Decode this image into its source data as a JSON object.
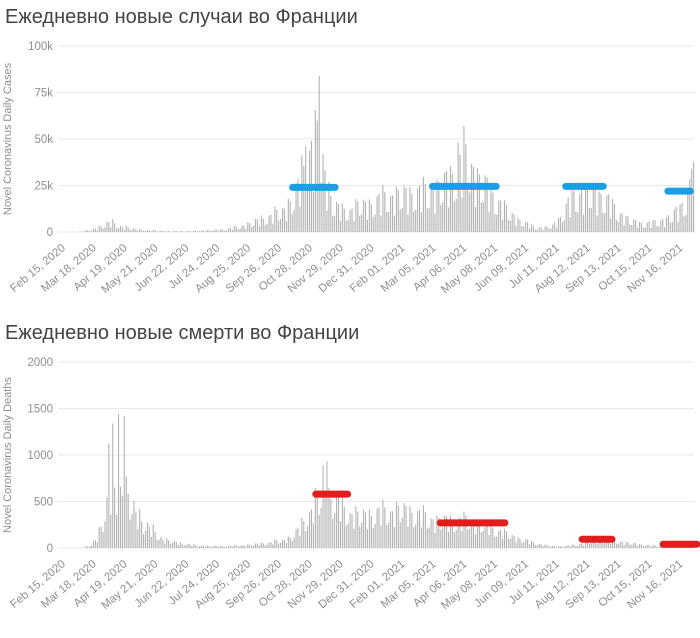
{
  "page": {
    "background": "#ffffff"
  },
  "chart_data": [
    {
      "type": "bar",
      "title": "Ежедневно новые случаи во Франции",
      "ylabel": "Novel Coronavirus Daily Cases",
      "xlabel": "",
      "x_start_date": "Feb 15, 2020",
      "x_tick_interval_days": 32,
      "total_days": 655,
      "sample_step_days": 2,
      "x_tick_labels": [
        "Feb 15, 2020",
        "Mar 18, 2020",
        "Apr 19, 2020",
        "May 21, 2020",
        "Jun 22, 2020",
        "Jul 24, 2020",
        "Aug 25, 2020",
        "Sep 26, 2020",
        "Oct 28, 2020",
        "Nov 29, 2020",
        "Dec 31, 2020",
        "Feb 01, 2021",
        "Mar 05, 2021",
        "Apr 06, 2021",
        "May 08, 2021",
        "Jun 09, 2021",
        "Jul 11, 2021",
        "Aug 12, 2021",
        "Sep 13, 2021",
        "Oct 15, 2021",
        "Nov 16, 2021"
      ],
      "ylim": [
        0,
        100000
      ],
      "y_tick_values": [
        0,
        25000,
        50000,
        75000,
        100000
      ],
      "y_tick_labels": [
        "0",
        "25k",
        "50k",
        "75k",
        "100k"
      ],
      "grid_on": true,
      "legend": "none",
      "bar_color": "#b2b2b2",
      "grid_color": "#e9e9e9",
      "envelope": [
        [
          0,
          5
        ],
        [
          15,
          60
        ],
        [
          29,
          900
        ],
        [
          40,
          3200
        ],
        [
          50,
          5200
        ],
        [
          60,
          3200
        ],
        [
          75,
          1500
        ],
        [
          90,
          800
        ],
        [
          107,
          500
        ],
        [
          122,
          450
        ],
        [
          137,
          600
        ],
        [
          152,
          900
        ],
        [
          168,
          1400
        ],
        [
          183,
          2800
        ],
        [
          199,
          5500
        ],
        [
          214,
          8500
        ],
        [
          229,
          12000
        ],
        [
          241,
          20000
        ],
        [
          249,
          33000
        ],
        [
          257,
          45000
        ],
        [
          263,
          50000
        ],
        [
          268,
          42000
        ],
        [
          274,
          27000
        ],
        [
          281,
          15000
        ],
        [
          290,
          11500
        ],
        [
          298,
          12000
        ],
        [
          306,
          14500
        ],
        [
          321,
          15500
        ],
        [
          329,
          18000
        ],
        [
          336,
          19500
        ],
        [
          352,
          20500
        ],
        [
          366,
          21500
        ],
        [
          380,
          22500
        ],
        [
          395,
          26000
        ],
        [
          409,
          34000
        ],
        [
          416,
          41000
        ],
        [
          423,
          36000
        ],
        [
          434,
          28000
        ],
        [
          448,
          19000
        ],
        [
          462,
          11000
        ],
        [
          476,
          5500
        ],
        [
          490,
          2600
        ],
        [
          500,
          2300
        ],
        [
          508,
          3500
        ],
        [
          516,
          8000
        ],
        [
          524,
          15000
        ],
        [
          531,
          20000
        ],
        [
          540,
          21500
        ],
        [
          550,
          21500
        ],
        [
          561,
          19500
        ],
        [
          573,
          12000
        ],
        [
          583,
          8000
        ],
        [
          594,
          5200
        ],
        [
          605,
          4600
        ],
        [
          616,
          5200
        ],
        [
          627,
          7500
        ],
        [
          637,
          11000
        ],
        [
          644,
          16000
        ],
        [
          650,
          24000
        ],
        [
          654,
          30000
        ]
      ],
      "spikes": [
        [
          252,
          46000
        ],
        [
          258,
          49000
        ],
        [
          264,
          60000
        ],
        [
          266,
          84000
        ],
        [
          410,
          48000
        ],
        [
          416,
          57000
        ],
        [
          652,
          34000
        ]
      ],
      "weekly_pattern": [
        0.5,
        0.4,
        0.55,
        1.3,
        1.25,
        1.2,
        1.1
      ],
      "highlight_color": "#1c9ee3",
      "highlight_segments": [
        {
          "start_day": 239,
          "end_day": 283,
          "value": 24000
        },
        {
          "start_day": 384,
          "end_day": 450,
          "value": 24500
        },
        {
          "start_day": 522,
          "end_day": 561,
          "value": 24500
        },
        {
          "start_day": 628,
          "end_day": 651,
          "value": 22000
        }
      ]
    },
    {
      "type": "bar",
      "title": "Ежедневно новые смерти во Франции",
      "ylabel": "Novel Coronavirus Daily Deaths",
      "xlabel": "",
      "x_start_date": "Feb 15, 2020",
      "x_tick_interval_days": 32,
      "total_days": 655,
      "sample_step_days": 2,
      "x_tick_labels": [
        "Feb 15, 2020",
        "Mar 18, 2020",
        "Apr 19, 2020",
        "May 21, 2020",
        "Jun 22, 2020",
        "Jul 24, 2020",
        "Aug 25, 2020",
        "Sep 26, 2020",
        "Oct 28, 2020",
        "Nov 29, 2020",
        "Dec 31, 2020",
        "Feb 01, 2021",
        "Mar 05, 2021",
        "Apr 06, 2021",
        "May 08, 2021",
        "Jun 09, 2021",
        "Jul 11, 2021",
        "Aug 12, 2021",
        "Sep 13, 2021",
        "Oct 15, 2021",
        "Nov 16, 2021"
      ],
      "ylim": [
        0,
        2000
      ],
      "y_tick_values": [
        0,
        500,
        1000,
        1500,
        2000
      ],
      "y_tick_labels": [
        "0",
        "500",
        "1000",
        "1500",
        "2000"
      ],
      "grid_on": true,
      "legend": "none",
      "bar_color": "#b2b2b2",
      "grid_color": "#e9e9e9",
      "envelope": [
        [
          0,
          0
        ],
        [
          20,
          1
        ],
        [
          29,
          25
        ],
        [
          36,
          120
        ],
        [
          43,
          350
        ],
        [
          50,
          600
        ],
        [
          57,
          680
        ],
        [
          64,
          620
        ],
        [
          71,
          480
        ],
        [
          78,
          380
        ],
        [
          85,
          270
        ],
        [
          92,
          200
        ],
        [
          100,
          130
        ],
        [
          107,
          85
        ],
        [
          122,
          55
        ],
        [
          137,
          30
        ],
        [
          152,
          22
        ],
        [
          168,
          20
        ],
        [
          183,
          28
        ],
        [
          199,
          40
        ],
        [
          214,
          60
        ],
        [
          229,
          85
        ],
        [
          238,
          130
        ],
        [
          246,
          220
        ],
        [
          255,
          380
        ],
        [
          263,
          520
        ],
        [
          270,
          600
        ],
        [
          277,
          580
        ],
        [
          284,
          510
        ],
        [
          292,
          430
        ],
        [
          299,
          390
        ],
        [
          306,
          360
        ],
        [
          321,
          380
        ],
        [
          336,
          410
        ],
        [
          352,
          430
        ],
        [
          366,
          390
        ],
        [
          380,
          330
        ],
        [
          395,
          300
        ],
        [
          409,
          310
        ],
        [
          423,
          305
        ],
        [
          434,
          270
        ],
        [
          448,
          210
        ],
        [
          462,
          150
        ],
        [
          476,
          95
        ],
        [
          490,
          55
        ],
        [
          502,
          28
        ],
        [
          512,
          18
        ],
        [
          522,
          22
        ],
        [
          531,
          35
        ],
        [
          540,
          55
        ],
        [
          550,
          75
        ],
        [
          561,
          90
        ],
        [
          573,
          78
        ],
        [
          583,
          62
        ],
        [
          594,
          45
        ],
        [
          605,
          32
        ],
        [
          616,
          24
        ],
        [
          627,
          24
        ],
        [
          637,
          28
        ],
        [
          646,
          32
        ],
        [
          654,
          38
        ]
      ],
      "spikes": [
        [
          48,
          1120
        ],
        [
          52,
          1340
        ],
        [
          58,
          1438
        ],
        [
          64,
          1420
        ],
        [
          270,
          890
        ],
        [
          274,
          932
        ]
      ],
      "weekly_pattern": [
        0.55,
        0.5,
        0.65,
        1.25,
        1.2,
        1.15,
        1.05
      ],
      "highlight_color": "#e01e1e",
      "highlight_segments": [
        {
          "start_day": 263,
          "end_day": 296,
          "value": 580
        },
        {
          "start_day": 392,
          "end_day": 459,
          "value": 270
        },
        {
          "start_day": 539,
          "end_day": 570,
          "value": 95
        },
        {
          "start_day": 623,
          "end_day": 658,
          "value": 40
        }
      ]
    }
  ]
}
